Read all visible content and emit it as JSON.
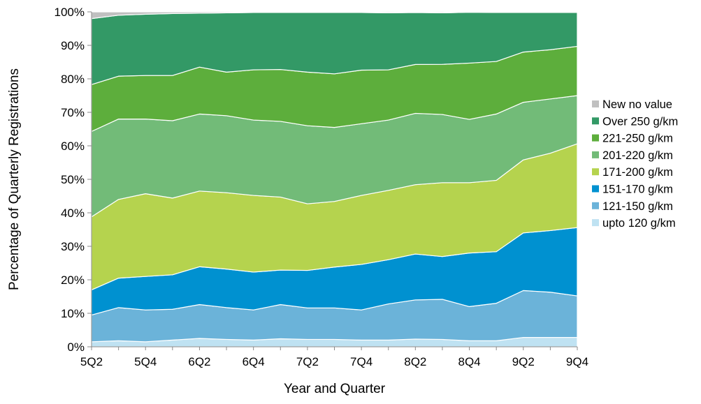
{
  "chart_data": {
    "type": "area",
    "stacked": true,
    "percent": true,
    "xlabel": "Year and Quarter",
    "ylabel": "Percentage of Quarterly Registrations",
    "ylim": [
      0,
      100
    ],
    "yticks": [
      "0%",
      "10%",
      "20%",
      "30%",
      "40%",
      "50%",
      "60%",
      "70%",
      "80%",
      "90%",
      "100%"
    ],
    "x": [
      "5Q2",
      "5Q3",
      "5Q4",
      "6Q1",
      "6Q2",
      "6Q3",
      "6Q4",
      "7Q1",
      "7Q2",
      "7Q3",
      "7Q4",
      "8Q1",
      "8Q2",
      "8Q3",
      "8Q4",
      "9Q1",
      "9Q2",
      "9Q3",
      "9Q4"
    ],
    "xtick_labels": [
      "5Q2",
      "",
      "5Q4",
      "",
      "6Q2",
      "",
      "6Q4",
      "",
      "7Q2",
      "",
      "7Q4",
      "",
      "8Q2",
      "",
      "8Q4",
      "",
      "9Q2",
      "",
      "9Q4"
    ],
    "legend_position": "right",
    "grid": false,
    "series": [
      {
        "name": "upto 120 g/km",
        "color": "#BFE2F2",
        "values": [
          1.5,
          1.8,
          1.5,
          2.0,
          2.5,
          2.2,
          2.0,
          2.4,
          2.2,
          2.2,
          2.0,
          2.0,
          2.3,
          2.2,
          1.8,
          1.8,
          2.8,
          2.8,
          2.8
        ]
      },
      {
        "name": "121-150 g/km",
        "color": "#6BB3D9",
        "values": [
          8.0,
          9.9,
          9.5,
          9.2,
          10.1,
          9.5,
          9.0,
          10.2,
          9.4,
          9.4,
          9.0,
          10.8,
          11.7,
          12.0,
          10.2,
          11.2,
          14.0,
          13.5,
          12.4
        ]
      },
      {
        "name": "151-170 g/km",
        "color": "#0091D0",
        "values": [
          7.5,
          8.8,
          10.0,
          10.3,
          11.3,
          11.5,
          11.3,
          10.3,
          11.2,
          12.2,
          13.6,
          13.2,
          13.7,
          12.8,
          16.0,
          15.4,
          17.2,
          18.4,
          20.4
        ]
      },
      {
        "name": "171-200 g/km",
        "color": "#B5D34E",
        "values": [
          21.8,
          23.5,
          24.7,
          22.9,
          22.6,
          22.8,
          22.9,
          21.8,
          19.9,
          19.6,
          20.6,
          20.7,
          20.7,
          22.1,
          21.0,
          21.3,
          21.8,
          23.1,
          25.0
        ]
      },
      {
        "name": "201-220 g/km",
        "color": "#72BB78",
        "values": [
          25.5,
          24.0,
          22.3,
          23.1,
          23.0,
          23.0,
          22.5,
          22.6,
          23.3,
          22.1,
          21.4,
          21.0,
          21.3,
          20.4,
          18.9,
          19.8,
          17.2,
          16.2,
          14.4
        ]
      },
      {
        "name": "221-250 g/km",
        "color": "#5DAE3C",
        "values": [
          14.0,
          12.8,
          13.0,
          13.5,
          14.0,
          13.0,
          15.0,
          15.5,
          16.0,
          16.0,
          16.0,
          15.0,
          14.6,
          15.0,
          16.8,
          15.7,
          15.0,
          14.7,
          14.7
        ]
      },
      {
        "name": "Over 250 g/km",
        "color": "#339966",
        "values": [
          19.7,
          18.2,
          18.3,
          18.5,
          16.1,
          17.7,
          17.1,
          17.0,
          17.8,
          18.3,
          17.2,
          17.0,
          15.5,
          15.4,
          15.2,
          14.6,
          11.8,
          11.1,
          10.1
        ]
      },
      {
        "name": "New no value",
        "color": "#C0C0C0",
        "values": [
          2.0,
          1.0,
          0.7,
          0.5,
          0.4,
          0.3,
          0.2,
          0.2,
          0.2,
          0.2,
          0.2,
          0.3,
          0.2,
          0.3,
          0.1,
          0.2,
          0.2,
          0.2,
          0.2
        ]
      }
    ]
  }
}
